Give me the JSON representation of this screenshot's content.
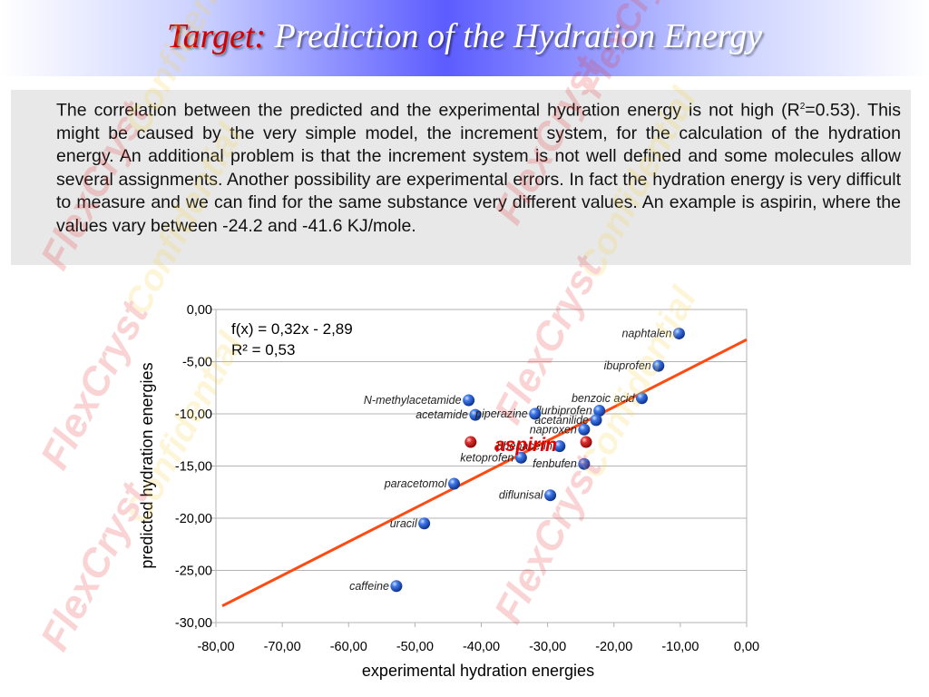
{
  "header": {
    "title_prefix": "Target:",
    "title_main": "Prediction of the Hydration Energy"
  },
  "body_text": {
    "paragraph_a": "The correlation between the predicted and the experimental hydration energy is not high (R",
    "superscript": "2",
    "paragraph_b": "=0.53). This might be caused by the very simple model, the increment system, for the calculation of the hydration energy. An additional problem is that the increment system is not well defined and some molecules allow several assignments. Another possibility are experimental errors. In fact the hydration energy is very difficult to measure and we can find for the same substance very different values. An example is aspirin, where the values vary between -24.2 and -41.6 KJ/mole."
  },
  "watermark": {
    "word1": "FlexCryst",
    "word2": "Confidential"
  },
  "colors": {
    "regression_line": "#ff4a12",
    "point_blue": "#1f55c8",
    "point_red": "#d81818",
    "highlight_label": "#e10000"
  },
  "chart_data": {
    "type": "scatter",
    "xlabel": "experimental hydration energies",
    "ylabel": "predicted hydration energies",
    "xlim": [
      -80,
      0
    ],
    "ylim": [
      -30,
      0
    ],
    "x_ticks": [
      "-80,00",
      "-70,00",
      "-60,00",
      "-50,00",
      "-40,00",
      "-30,00",
      "-20,00",
      "-10,00",
      "0,00"
    ],
    "y_ticks": [
      "0,00",
      "-5,00",
      "-10,00",
      "-15,00",
      "-20,00",
      "-25,00",
      "-30,00"
    ],
    "grid": "horizontal",
    "equation": "f(x) = 0,32x - 2,89",
    "r_squared": "R² = 0,53",
    "trendline": {
      "slope": 0.32,
      "intercept": -2.89
    },
    "highlight_label": "aspirin",
    "points": [
      {
        "label": "naphtalen",
        "x": -10.2,
        "y": -2.3,
        "color": "blue"
      },
      {
        "label": "ibuprofen",
        "x": -13.3,
        "y": -5.4,
        "color": "blue"
      },
      {
        "label": "benzoic acid",
        "x": -15.8,
        "y": -8.5,
        "color": "blue"
      },
      {
        "label": "N-methylacetamide",
        "x": -41.9,
        "y": -8.7,
        "color": "blue"
      },
      {
        "label": "flurbiprofen",
        "x": -22.2,
        "y": -9.7,
        "color": "blue"
      },
      {
        "label": "acetamide",
        "x": -40.9,
        "y": -10.1,
        "color": "blue"
      },
      {
        "label": "piperazine",
        "x": -31.9,
        "y": -10.0,
        "color": "blue"
      },
      {
        "label": "acetanilide",
        "x": -22.7,
        "y": -10.6,
        "color": "blue"
      },
      {
        "label": "naproxen",
        "x": -24.5,
        "y": -11.5,
        "color": "blue"
      },
      {
        "label": "",
        "x": -41.6,
        "y": -12.7,
        "color": "red"
      },
      {
        "label": "",
        "x": -24.2,
        "y": -12.7,
        "color": "red"
      },
      {
        "label": "phenacetin",
        "x": -28.2,
        "y": -13.1,
        "color": "blue"
      },
      {
        "label": "ketoprofen",
        "x": -34.0,
        "y": -14.2,
        "color": "blue"
      },
      {
        "label": "fenbufen",
        "x": -24.5,
        "y": -14.8,
        "color": "blue"
      },
      {
        "label": "paracetomol",
        "x": -44.1,
        "y": -16.7,
        "color": "blue"
      },
      {
        "label": "diflunisal",
        "x": -29.6,
        "y": -17.8,
        "color": "blue"
      },
      {
        "label": "uracil",
        "x": -48.6,
        "y": -20.5,
        "color": "blue"
      },
      {
        "label": "caffeine",
        "x": -52.8,
        "y": -26.5,
        "color": "blue"
      }
    ]
  }
}
